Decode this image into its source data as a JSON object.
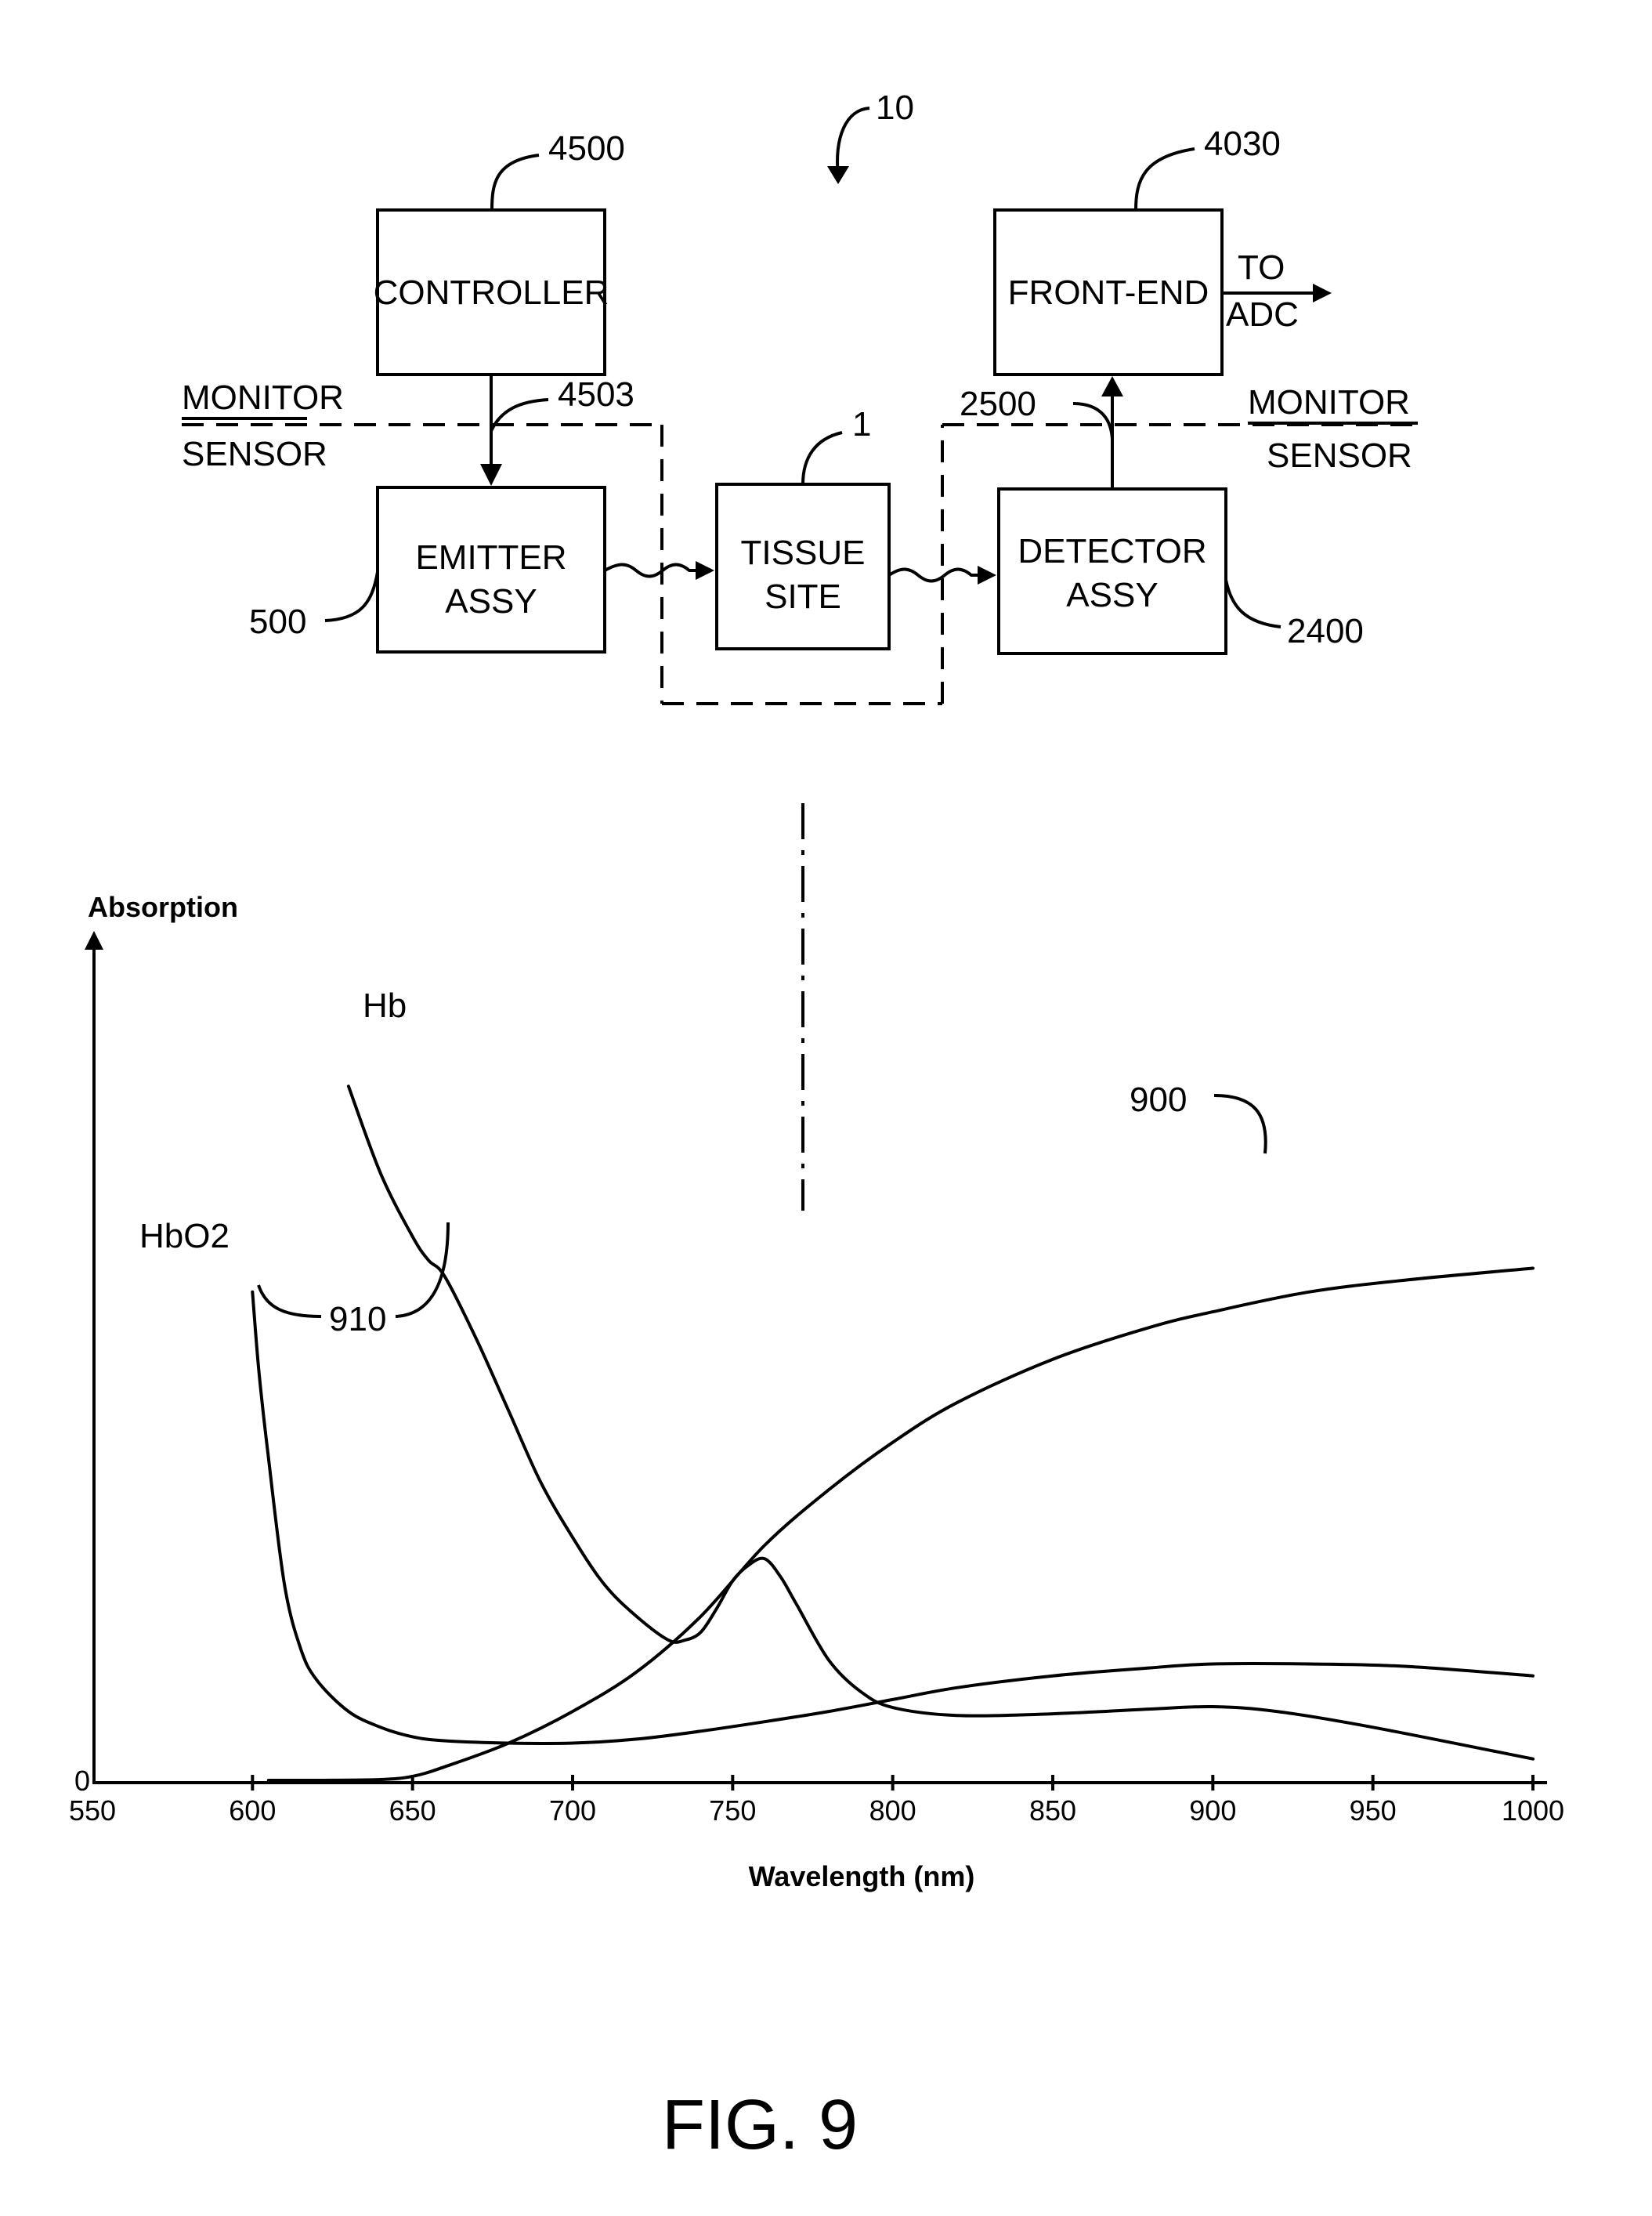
{
  "diagram": {
    "ref_system": "10",
    "controller": {
      "label": "CONTROLLER",
      "ref": "4500"
    },
    "front_end": {
      "label": "FRONT-END",
      "ref": "4030",
      "output_top": "TO",
      "output_bottom": "ADC"
    },
    "emitter": {
      "label_line1": "EMITTER",
      "label_line2": "ASSY",
      "ref": "500"
    },
    "tissue": {
      "label_line1": "TISSUE",
      "label_line2": "SITE",
      "ref": "1"
    },
    "detector": {
      "label_line1": "DETECTOR",
      "label_line2": "ASSY",
      "ref": "2400"
    },
    "ref_controller_link": "4503",
    "ref_detector_link": "2500",
    "left_boundary": {
      "top": "MONITOR",
      "bottom": "SENSOR"
    },
    "right_boundary": {
      "top": "MONITOR",
      "bottom": "SENSOR"
    }
  },
  "chart_data": {
    "type": "line",
    "ylabel": "Absorption",
    "xlabel": "Wavelength (nm)",
    "xlim": [
      550,
      1000
    ],
    "ylim": [
      0,
      1
    ],
    "y_ticks": [
      "0"
    ],
    "x_ticks": [
      550,
      600,
      650,
      700,
      750,
      800,
      850,
      900,
      950,
      1000
    ],
    "series": [
      {
        "name": "Hb",
        "x": [
          630,
          640,
          650,
          655,
          660,
          670,
          680,
          690,
          700,
          710,
          720,
          730,
          735,
          740,
          745,
          750,
          755,
          760,
          765,
          770,
          780,
          790,
          800,
          820,
          850,
          880,
          900,
          920,
          950,
          1000
        ],
        "y": [
          0.88,
          0.77,
          0.69,
          0.66,
          0.64,
          0.56,
          0.47,
          0.38,
          0.31,
          0.25,
          0.21,
          0.18,
          0.18,
          0.19,
          0.22,
          0.255,
          0.275,
          0.283,
          0.26,
          0.225,
          0.155,
          0.115,
          0.095,
          0.085,
          0.087,
          0.093,
          0.096,
          0.09,
          0.07,
          0.03
        ]
      },
      {
        "name": "HbO2",
        "x": [
          600,
          602,
          605,
          610,
          615,
          620,
          630,
          640,
          650,
          660,
          680,
          700,
          720,
          740,
          760,
          780,
          800,
          820,
          850,
          880,
          900,
          930,
          960,
          1000
        ],
        "y": [
          0.62,
          0.52,
          0.41,
          0.25,
          0.17,
          0.13,
          0.09,
          0.07,
          0.058,
          0.053,
          0.05,
          0.05,
          0.055,
          0.065,
          0.077,
          0.09,
          0.105,
          0.12,
          0.135,
          0.145,
          0.15,
          0.15,
          0.147,
          0.135
        ]
      },
      {
        "name": "900",
        "x": [
          605,
          620,
          640,
          650,
          660,
          680,
          700,
          720,
          740,
          760,
          780,
          800,
          820,
          850,
          880,
          900,
          930,
          960,
          1000
        ],
        "y": [
          0.003,
          0.003,
          0.004,
          0.008,
          0.02,
          0.05,
          0.09,
          0.14,
          0.21,
          0.3,
          0.37,
          0.43,
          0.48,
          0.535,
          0.575,
          0.595,
          0.62,
          0.635,
          0.65
        ]
      }
    ],
    "annotations": [
      "910",
      "900"
    ]
  },
  "figure_label": "FIG. 9"
}
